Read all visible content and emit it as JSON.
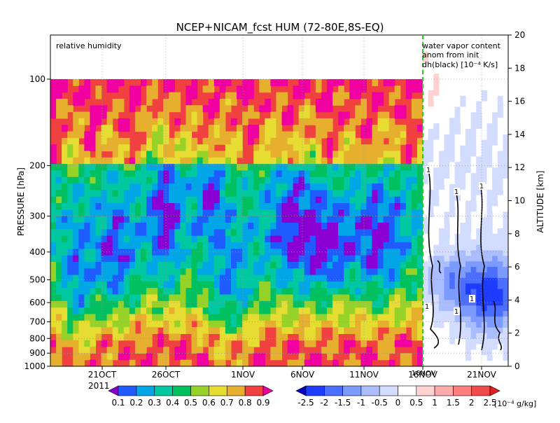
{
  "chart_data": [
    {
      "type": "heatmap",
      "title": "NCEP+NICAM_fcst HUM (72-80E,8S-EQ)",
      "panel_label": "relative humidity",
      "ylabel": "PRESSURE [hPa]",
      "y2label": "ALTITUDE [km]",
      "x_ticks": [
        "21OCT",
        "26OCT",
        "1NOV",
        "6NOV",
        "11NOV",
        "16NOV",
        "21NOV"
      ],
      "x_year_label": "2011",
      "y_ticks": [
        "100",
        "200",
        "300",
        "400",
        "500",
        "600",
        "700",
        "800",
        "900",
        "1000"
      ],
      "y_tick_values": [
        100,
        200,
        300,
        400,
        500,
        600,
        700,
        800,
        900,
        1000
      ],
      "y2_ticks": [
        "0",
        "2",
        "4",
        "6",
        "8",
        "10",
        "12",
        "14",
        "16",
        "18",
        "20"
      ],
      "grid": true,
      "forecast_start_marker": "16NOV",
      "fill_levels": [
        0.1,
        0.2,
        0.3,
        0.4,
        0.5,
        0.6,
        0.7,
        0.8,
        0.9
      ],
      "colorbar": {
        "labels": [
          "0.1",
          "0.2",
          "0.3",
          "0.4",
          "0.5",
          "0.6",
          "0.7",
          "0.8",
          "0.9"
        ],
        "colors": [
          "#8a00d4",
          "#1e5cff",
          "#00a6e6",
          "#00c8a0",
          "#00c060",
          "#96d228",
          "#e6dc32",
          "#e6af2d",
          "#f04040",
          "#f000a0"
        ]
      }
    },
    {
      "type": "heatmap",
      "panel_label_lines": [
        "water vapor content",
        "anom from init",
        "dh(black) [10⁻⁴ K/s]"
      ],
      "contour_labels": [
        "1",
        "1",
        "1",
        "1",
        "1",
        "1"
      ],
      "colorbar": {
        "labels": [
          "-2.5",
          "-2",
          "-1.5",
          "-1",
          "-0.5",
          "0",
          "0.5",
          "1",
          "1.5",
          "2",
          "2.5"
        ],
        "unit": "[10⁻⁴ g/kg]",
        "colors": [
          "#0000c8",
          "#1e3cff",
          "#4b6eff",
          "#7d9bff",
          "#aabeff",
          "#d2dcff",
          "#ffffff",
          "#ffd2d2",
          "#ffaaaa",
          "#ff7d7d",
          "#f04b4b",
          "#e61e1e"
        ]
      }
    }
  ]
}
